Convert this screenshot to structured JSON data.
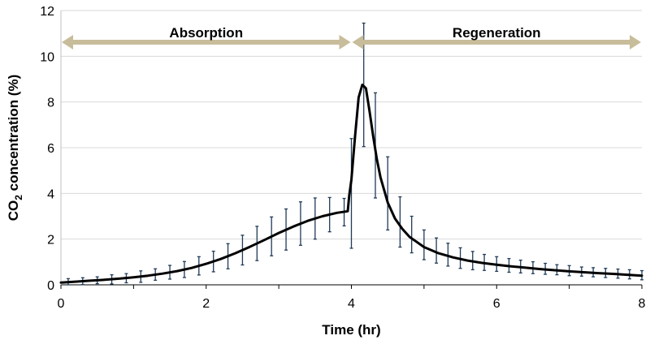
{
  "chart_data": {
    "type": "line",
    "title": "",
    "xlabel": "Time (hr)",
    "ylabel": "CO2 concentration (%)",
    "xlim": [
      0,
      8
    ],
    "ylim": [
      0,
      12
    ],
    "xticks": [
      0,
      2,
      4,
      6,
      8
    ],
    "yticks": [
      0,
      2,
      4,
      6,
      8,
      10,
      12
    ],
    "grid": "horizontal",
    "colors": {
      "line": "#000000",
      "error_bars": "#1f3b57",
      "arrows": "#c8bd9a",
      "grid": "#d9d9d9",
      "axis": "#000000"
    },
    "phases": [
      {
        "label": "Absorption",
        "x_start": 0,
        "x_end": 4
      },
      {
        "label": "Regeneration",
        "x_start": 4,
        "x_end": 8
      }
    ],
    "series": [
      {
        "name": "CO2 concentration",
        "x": [
          0,
          0.2,
          0.4,
          0.6,
          0.8,
          1.0,
          1.2,
          1.4,
          1.6,
          1.8,
          2.0,
          2.2,
          2.4,
          2.6,
          2.8,
          3.0,
          3.2,
          3.4,
          3.6,
          3.8,
          3.95,
          3.97,
          4.0,
          4.05,
          4.1,
          4.15,
          4.2,
          4.25,
          4.3,
          4.35,
          4.4,
          4.5,
          4.6,
          4.7,
          4.8,
          5.0,
          5.2,
          5.4,
          5.6,
          5.8,
          6.0,
          6.2,
          6.4,
          6.6,
          6.8,
          7.0,
          7.2,
          7.4,
          7.6,
          7.8,
          8.0
        ],
        "values": [
          0.1,
          0.14,
          0.18,
          0.22,
          0.27,
          0.33,
          0.4,
          0.49,
          0.6,
          0.74,
          0.92,
          1.13,
          1.38,
          1.66,
          1.96,
          2.27,
          2.55,
          2.8,
          3.0,
          3.15,
          3.22,
          3.9,
          4.6,
          6.5,
          8.2,
          8.75,
          8.6,
          7.6,
          6.5,
          5.5,
          4.7,
          3.6,
          2.9,
          2.45,
          2.1,
          1.65,
          1.38,
          1.2,
          1.06,
          0.96,
          0.88,
          0.81,
          0.75,
          0.69,
          0.64,
          0.59,
          0.55,
          0.51,
          0.48,
          0.44,
          0.4
        ]
      }
    ],
    "error_bars": {
      "x": [
        0.1,
        0.3,
        0.5,
        0.7,
        0.9,
        1.1,
        1.3,
        1.5,
        1.7,
        1.9,
        2.1,
        2.3,
        2.5,
        2.7,
        2.9,
        3.1,
        3.3,
        3.5,
        3.7,
        3.9,
        4.0,
        4.17,
        4.33,
        4.5,
        4.67,
        4.83,
        5.0,
        5.17,
        5.33,
        5.5,
        5.67,
        5.83,
        6.0,
        6.17,
        6.33,
        6.5,
        6.67,
        6.83,
        7.0,
        7.17,
        7.33,
        7.5,
        7.67,
        7.83,
        8.0
      ],
      "mean": [
        0.12,
        0.16,
        0.2,
        0.24,
        0.29,
        0.36,
        0.45,
        0.55,
        0.67,
        0.83,
        1.02,
        1.25,
        1.52,
        1.81,
        2.12,
        2.42,
        2.68,
        2.9,
        3.07,
        3.18,
        4.0,
        8.75,
        6.1,
        4.0,
        2.75,
        2.2,
        1.75,
        1.5,
        1.32,
        1.17,
        1.06,
        0.98,
        0.91,
        0.85,
        0.8,
        0.75,
        0.7,
        0.66,
        0.62,
        0.58,
        0.55,
        0.52,
        0.49,
        0.46,
        0.42
      ],
      "err": [
        0.15,
        0.15,
        0.15,
        0.2,
        0.2,
        0.25,
        0.25,
        0.3,
        0.35,
        0.4,
        0.45,
        0.55,
        0.65,
        0.75,
        0.85,
        0.9,
        0.95,
        0.9,
        0.75,
        0.6,
        2.4,
        2.7,
        2.3,
        1.6,
        1.1,
        0.8,
        0.65,
        0.55,
        0.5,
        0.45,
        0.4,
        0.35,
        0.32,
        0.3,
        0.28,
        0.26,
        0.24,
        0.22,
        0.22,
        0.2,
        0.2,
        0.2,
        0.2,
        0.2,
        0.2
      ]
    }
  }
}
